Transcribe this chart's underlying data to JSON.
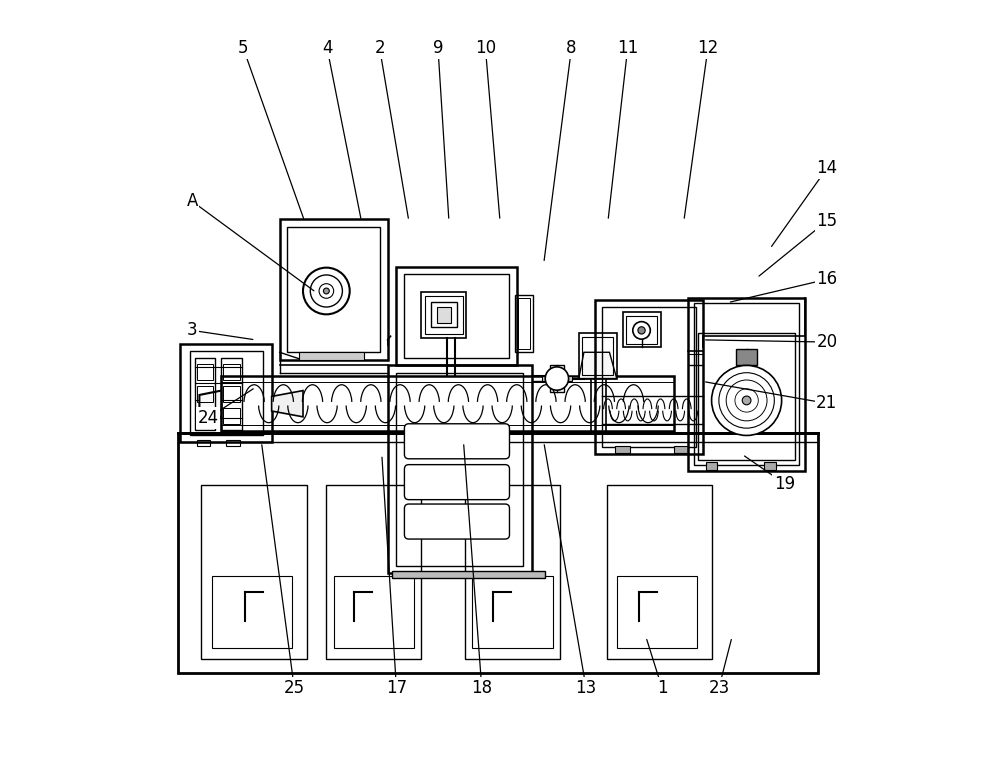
{
  "bg_color": "#ffffff",
  "lc": "#000000",
  "fig_width": 10.0,
  "fig_height": 7.6,
  "annotation_lines": [
    [
      "5",
      [
        0.148,
        0.955
      ],
      [
        0.232,
        0.718
      ]
    ],
    [
      "4",
      [
        0.263,
        0.955
      ],
      [
        0.31,
        0.718
      ]
    ],
    [
      "2",
      [
        0.335,
        0.955
      ],
      [
        0.375,
        0.718
      ]
    ],
    [
      "9",
      [
        0.415,
        0.955
      ],
      [
        0.43,
        0.718
      ]
    ],
    [
      "10",
      [
        0.48,
        0.955
      ],
      [
        0.5,
        0.718
      ]
    ],
    [
      "8",
      [
        0.598,
        0.955
      ],
      [
        0.56,
        0.66
      ]
    ],
    [
      "11",
      [
        0.675,
        0.955
      ],
      [
        0.648,
        0.718
      ]
    ],
    [
      "12",
      [
        0.785,
        0.955
      ],
      [
        0.752,
        0.718
      ]
    ],
    [
      "A",
      [
        0.078,
        0.745
      ],
      [
        0.248,
        0.62
      ]
    ],
    [
      "3",
      [
        0.078,
        0.568
      ],
      [
        0.165,
        0.555
      ]
    ],
    [
      "14",
      [
        0.948,
        0.79
      ],
      [
        0.87,
        0.68
      ]
    ],
    [
      "15",
      [
        0.948,
        0.718
      ],
      [
        0.852,
        0.64
      ]
    ],
    [
      "16",
      [
        0.948,
        0.638
      ],
      [
        0.812,
        0.606
      ]
    ],
    [
      "20",
      [
        0.948,
        0.552
      ],
      [
        0.778,
        0.555
      ]
    ],
    [
      "21",
      [
        0.948,
        0.468
      ],
      [
        0.778,
        0.498
      ]
    ],
    [
      "19",
      [
        0.89,
        0.358
      ],
      [
        0.832,
        0.398
      ]
    ],
    [
      "24",
      [
        0.1,
        0.448
      ],
      [
        0.165,
        0.49
      ]
    ],
    [
      "25",
      [
        0.218,
        0.078
      ],
      [
        0.173,
        0.415
      ]
    ],
    [
      "17",
      [
        0.358,
        0.078
      ],
      [
        0.338,
        0.398
      ]
    ],
    [
      "18",
      [
        0.475,
        0.078
      ],
      [
        0.45,
        0.415
      ]
    ],
    [
      "13",
      [
        0.618,
        0.078
      ],
      [
        0.56,
        0.415
      ]
    ],
    [
      "1",
      [
        0.722,
        0.078
      ],
      [
        0.7,
        0.148
      ]
    ],
    [
      "23",
      [
        0.8,
        0.078
      ],
      [
        0.818,
        0.148
      ]
    ]
  ]
}
